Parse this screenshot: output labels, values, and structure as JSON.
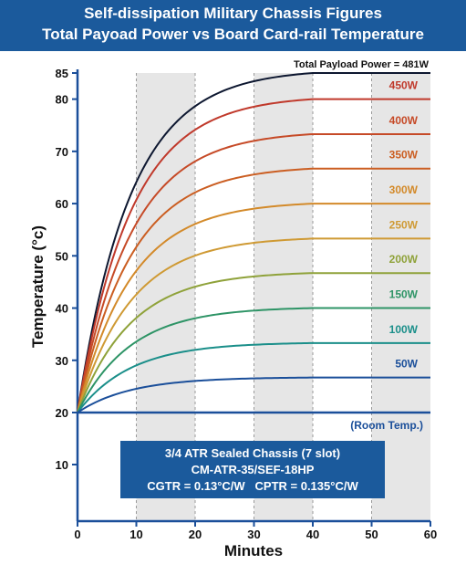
{
  "title": "Self-dissipation Military Chassis Figures",
  "subtitle": "Total Payoad Power vs Board Card-rail Temperature",
  "chart_data": {
    "type": "line",
    "xlabel": "Minutes",
    "ylabel": "Temperature (°c)",
    "xlim": [
      0,
      60
    ],
    "ylim": [
      0,
      85
    ],
    "x_ticks": [
      0,
      10,
      20,
      30,
      40,
      50,
      60
    ],
    "y_ticks": [
      10,
      20,
      30,
      40,
      50,
      60,
      70,
      80,
      85
    ],
    "shaded_bands": [
      [
        10,
        20
      ],
      [
        30,
        40
      ],
      [
        50,
        60
      ]
    ],
    "baseline": {
      "label": "(Room Temp.)",
      "value": 20,
      "color": "#1b4f9a"
    },
    "series": [
      {
        "name": "Total Payload Power = 481W",
        "final": 85,
        "color": "#0d1730"
      },
      {
        "name": "450W",
        "final": 80,
        "color": "#c0392b"
      },
      {
        "name": "400W",
        "final": 73.3,
        "color": "#c64a27"
      },
      {
        "name": "350W",
        "final": 66.7,
        "color": "#cb5e22"
      },
      {
        "name": "300W",
        "final": 60,
        "color": "#d38a2a"
      },
      {
        "name": "250W",
        "final": 53.3,
        "color": "#cf9a34"
      },
      {
        "name": "200W",
        "final": 46.7,
        "color": "#8fa23a"
      },
      {
        "name": "150W",
        "final": 40,
        "color": "#2e9466"
      },
      {
        "name": "100W",
        "final": 33.3,
        "color": "#1b8f8a"
      },
      {
        "name": "50W",
        "final": 26.7,
        "color": "#1b4f9a"
      }
    ],
    "start_value": 20,
    "info_box": {
      "line1": "3/4 ATR Sealed Chassis (7 slot)",
      "line2": "CM-ATR-35/SEF-18HP",
      "line3": "CGTR = 0.13°C/W   CPTR = 0.135°C/W",
      "color": "#1b5a9c"
    }
  }
}
